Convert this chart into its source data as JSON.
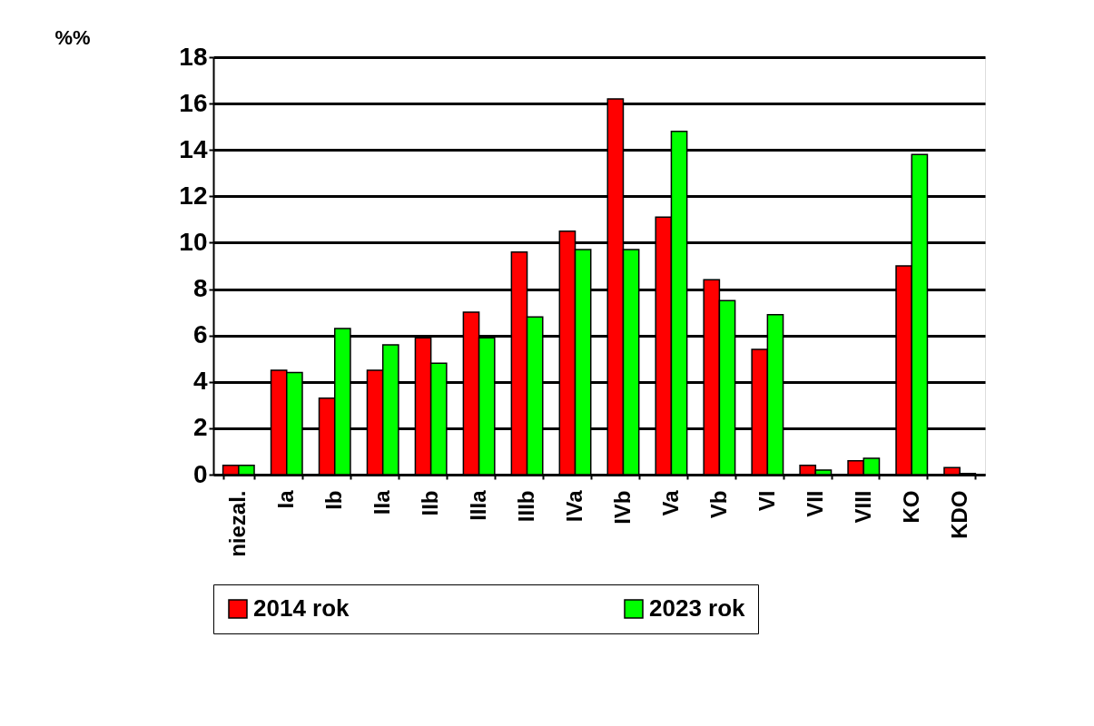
{
  "chart_data": {
    "type": "bar",
    "ylabel": "%%",
    "categories": [
      "niezal.",
      "Ia",
      "Ib",
      "IIa",
      "IIb",
      "IIIa",
      "IIIb",
      "IVa",
      "IVb",
      "Va",
      "Vb",
      "VI",
      "VII",
      "VIII",
      "KO",
      "KDO"
    ],
    "series": [
      {
        "name": "2014 rok",
        "color": "#ff0000",
        "values": [
          0.4,
          4.5,
          3.3,
          4.5,
          5.9,
          7.0,
          9.6,
          10.5,
          16.2,
          11.1,
          8.4,
          5.4,
          0.4,
          0.6,
          9.0,
          0.3
        ]
      },
      {
        "name": "2023 rok",
        "color": "#00ff00",
        "values": [
          0.4,
          4.4,
          6.3,
          5.6,
          4.8,
          5.9,
          6.8,
          9.7,
          9.7,
          14.8,
          7.5,
          6.9,
          0.2,
          0.7,
          13.8,
          0.05
        ]
      }
    ],
    "ylim": [
      0,
      18
    ],
    "yticks": [
      0,
      2,
      4,
      6,
      8,
      10,
      12,
      14,
      16,
      18
    ],
    "grid": "y",
    "legend": "bottom"
  }
}
